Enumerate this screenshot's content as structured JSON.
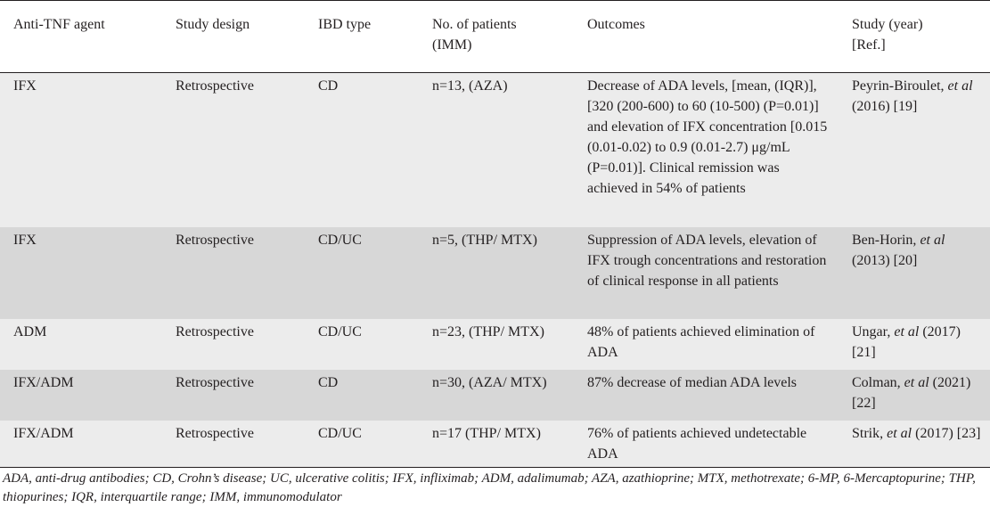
{
  "table": {
    "headers": {
      "agent": "Anti-TNF agent",
      "design": "Study design",
      "ibd": "IBD type",
      "patients_line1": "No. of patients",
      "patients_line2": "(IMM)",
      "outcomes": "Outcomes",
      "study_line1": "Study (year)",
      "study_line2": "[Ref.]"
    },
    "rows": [
      {
        "agent": "IFX",
        "design": "Retrospective",
        "ibd": "CD",
        "patients": "n=13, (AZA)",
        "outcomes": "Decrease of ADA levels, [mean, (IQR)], [320 (200-600) to 60 (10-500) (P=0.01)] and elevation of IFX concentration [0.015 (0.01-0.02) to 0.9 (0.01-2.7) μg/mL (P=0.01)]. Clinical remission was achieved in 54% of patients",
        "study_author": "Peyrin-Biroulet,",
        "study_etal": "et al",
        "study_rest": "(2016) [19]"
      },
      {
        "agent": "IFX",
        "design": "Retrospective",
        "ibd": "CD/UC",
        "patients": "n=5, (THP/ MTX)",
        "outcomes": "Suppression of ADA levels, elevation of IFX trough concentrations and restoration of clinical response in all patients",
        "study_author": "Ben-Horin,",
        "study_etal": "et al",
        "study_rest": "(2013) [20]"
      },
      {
        "agent": "ADM",
        "design": "Retrospective",
        "ibd": "CD/UC",
        "patients": "n=23, (THP/ MTX)",
        "outcomes": "48% of patients achieved elimination of ADA",
        "study_author": "Ungar,",
        "study_etal": "et al",
        "study_rest": "(2017) [21]"
      },
      {
        "agent": "IFX/ADM",
        "design": "Retrospective",
        "ibd": "CD",
        "patients": "n=30, (AZA/ MTX)",
        "outcomes": "87% decrease of median ADA levels",
        "study_author": "Colman,",
        "study_etal": "et al",
        "study_rest": "(2021) [22]"
      },
      {
        "agent": "IFX/ADM",
        "design": "Retrospective",
        "ibd": "CD/UC",
        "patients": "n=17 (THP/ MTX)",
        "outcomes": "76% of patients achieved undetectable ADA",
        "study_author": "Strik,",
        "study_etal": "et al",
        "study_rest": "(2017) [23]"
      }
    ]
  },
  "footnote": "ADA, anti-drug antibodies; CD, Crohn’s disease; UC, ulcerative colitis; IFX, infliximab; ADM, adalimumab; AZA, azathioprine; MTX, methotrexate; 6-MP, 6-Mercaptopurine; THP, thiopurines; IQR, interquartile range; IMM, immunomodulator"
}
